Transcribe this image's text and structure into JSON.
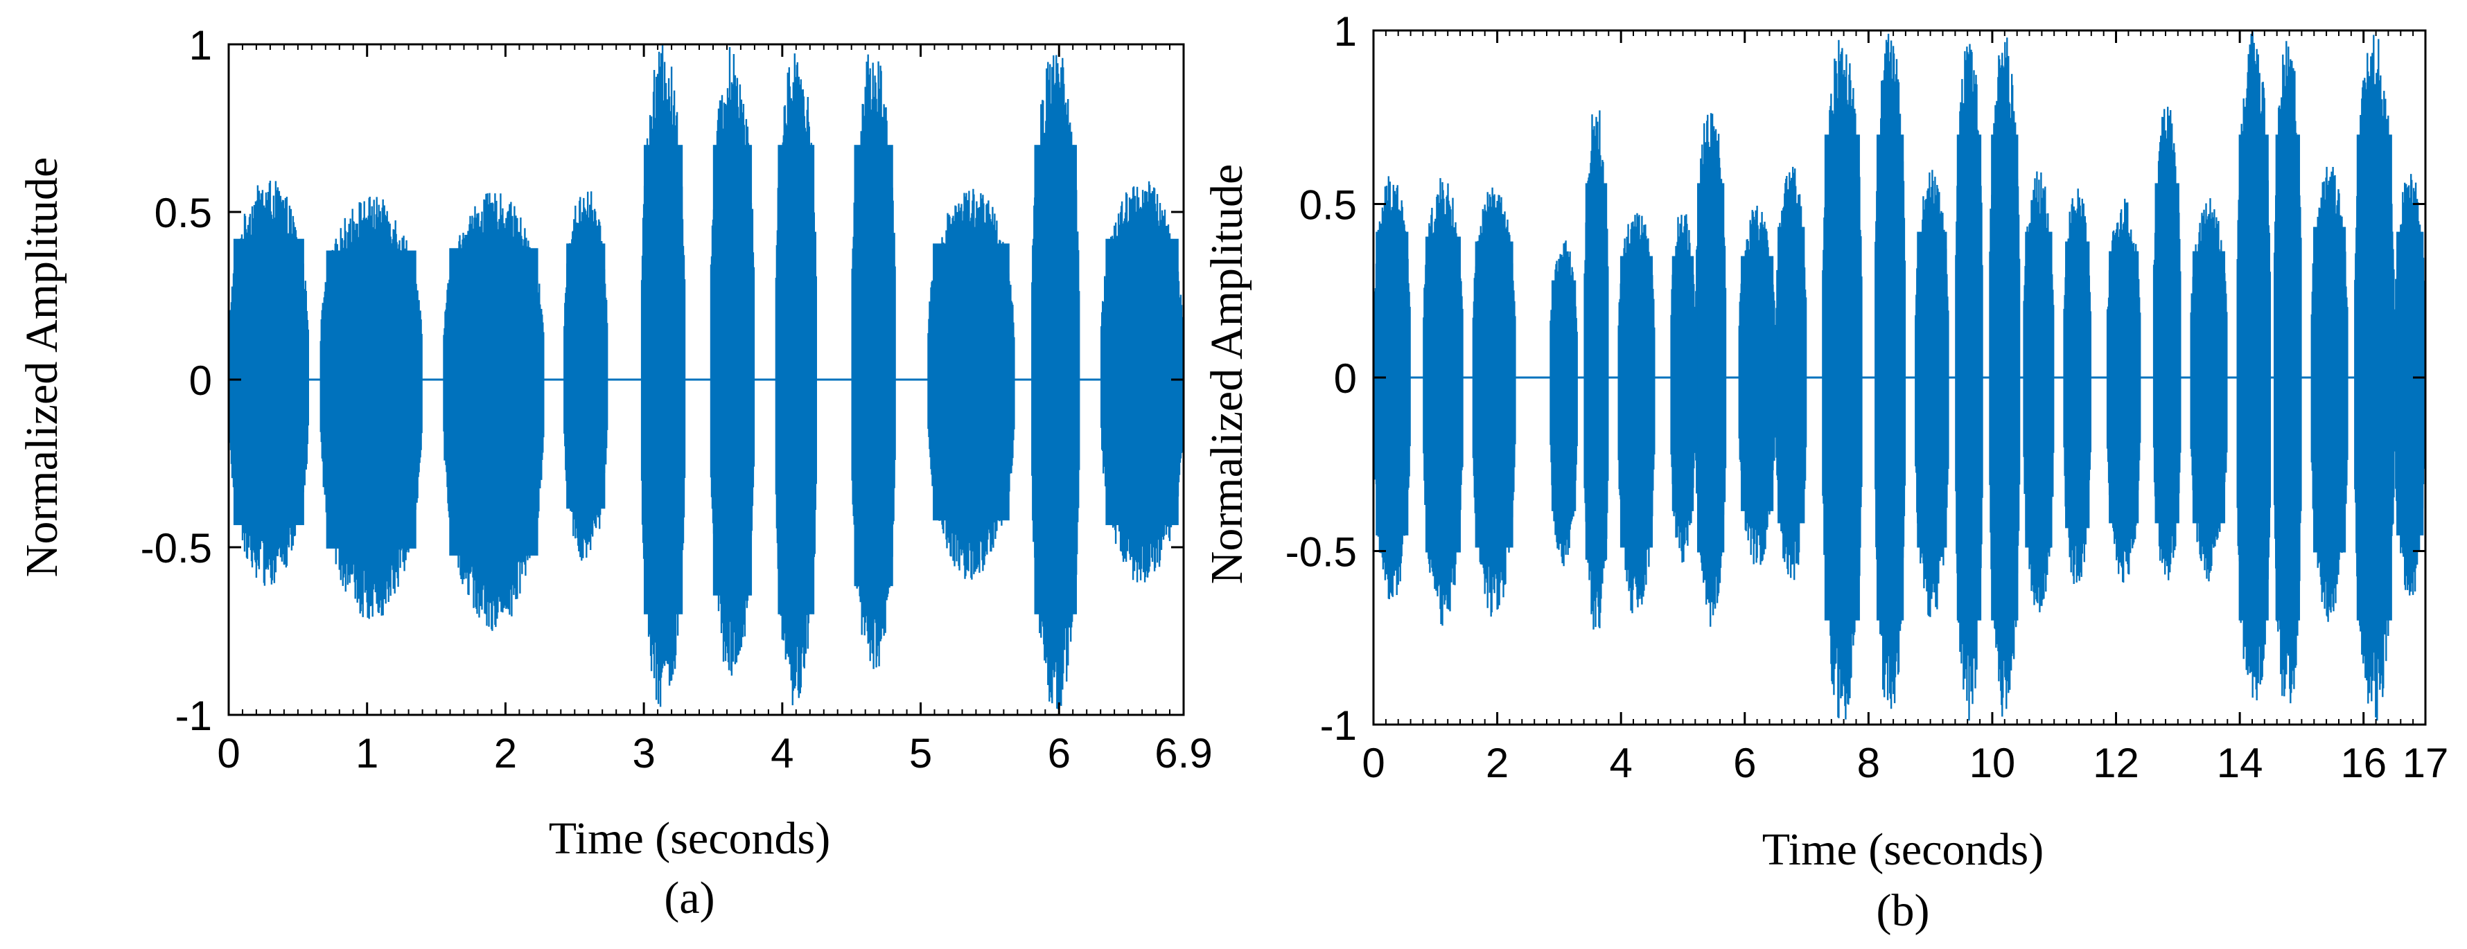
{
  "chart_data": [
    {
      "type": "line",
      "caption": "(a)",
      "xlabel": "Time (seconds)",
      "ylabel": "Normalized Amplitude",
      "xlim": [
        0,
        6.9
      ],
      "ylim": [
        -1,
        1
      ],
      "x_ticks": [
        0,
        1,
        2,
        3,
        4,
        5,
        6,
        6.9
      ],
      "x_tick_labels": [
        "0",
        "1",
        "2",
        "3",
        "4",
        "5",
        "6",
        "6.9"
      ],
      "y_ticks": [
        1,
        0.5,
        0,
        -0.5,
        -1
      ],
      "y_tick_labels": [
        "1",
        "0.5",
        "0",
        "-0.5",
        "-1"
      ],
      "grid": false,
      "series": [
        {
          "name": "waveform",
          "color": "#0072BD",
          "segments": [
            {
              "start": 0.0,
              "end": 0.58,
              "peak": 0.6,
              "neg_peak": -0.62
            },
            {
              "start": 0.66,
              "end": 1.4,
              "peak": 0.55,
              "neg_peak": -0.72
            },
            {
              "start": 1.55,
              "end": 2.28,
              "peak": 0.56,
              "neg_peak": -0.75
            },
            {
              "start": 2.42,
              "end": 2.74,
              "peak": 0.58,
              "neg_peak": -0.55
            },
            {
              "start": 2.98,
              "end": 3.3,
              "peak": 1.0,
              "neg_peak": -1.0
            },
            {
              "start": 3.48,
              "end": 3.8,
              "peak": 1.0,
              "neg_peak": -0.92
            },
            {
              "start": 3.95,
              "end": 4.25,
              "peak": 1.0,
              "neg_peak": -1.0
            },
            {
              "start": 4.5,
              "end": 4.82,
              "peak": 1.0,
              "neg_peak": -0.88
            },
            {
              "start": 5.05,
              "end": 5.68,
              "peak": 0.58,
              "neg_peak": -0.6
            },
            {
              "start": 5.8,
              "end": 6.15,
              "peak": 1.0,
              "neg_peak": -1.0
            },
            {
              "start": 6.3,
              "end": 6.9,
              "peak": 0.6,
              "neg_peak": -0.62
            }
          ]
        }
      ]
    },
    {
      "type": "line",
      "caption": "(b)",
      "xlabel": "Time (seconds)",
      "ylabel": "Normalized Amplitude",
      "xlim": [
        0,
        17
      ],
      "ylim": [
        -1,
        1
      ],
      "x_ticks": [
        0,
        2,
        4,
        6,
        8,
        10,
        12,
        14,
        16,
        17
      ],
      "x_tick_labels": [
        "0",
        "2",
        "4",
        "6",
        "8",
        "10",
        "12",
        "14",
        "16",
        "17"
      ],
      "y_ticks": [
        1,
        0.5,
        0,
        -0.5,
        -1
      ],
      "y_tick_labels": [
        "1",
        "0.5",
        "0",
        "-0.5",
        "-1"
      ],
      "grid": false,
      "series": [
        {
          "name": "waveform",
          "color": "#0072BD",
          "segments": [
            {
              "start": 0.0,
              "end": 0.6,
              "peak": 0.6,
              "neg_peak": -0.65
            },
            {
              "start": 0.8,
              "end": 1.45,
              "peak": 0.58,
              "neg_peak": -0.72
            },
            {
              "start": 1.6,
              "end": 2.3,
              "peak": 0.56,
              "neg_peak": -0.7
            },
            {
              "start": 2.85,
              "end": 3.3,
              "peak": 0.4,
              "neg_peak": -0.55
            },
            {
              "start": 3.4,
              "end": 3.8,
              "peak": 0.8,
              "neg_peak": -0.75
            },
            {
              "start": 3.95,
              "end": 4.55,
              "peak": 0.5,
              "neg_peak": -0.7
            },
            {
              "start": 4.8,
              "end": 5.2,
              "peak": 0.5,
              "neg_peak": -0.55
            },
            {
              "start": 5.2,
              "end": 5.7,
              "peak": 0.8,
              "neg_peak": -0.72
            },
            {
              "start": 5.9,
              "end": 6.5,
              "peak": 0.5,
              "neg_peak": -0.55
            },
            {
              "start": 6.5,
              "end": 7.0,
              "peak": 0.62,
              "neg_peak": -0.6
            },
            {
              "start": 7.25,
              "end": 7.9,
              "peak": 1.0,
              "neg_peak": -1.0
            },
            {
              "start": 8.1,
              "end": 8.6,
              "peak": 1.0,
              "neg_peak": -1.0
            },
            {
              "start": 8.75,
              "end": 9.3,
              "peak": 0.6,
              "neg_peak": -0.7
            },
            {
              "start": 9.4,
              "end": 9.85,
              "peak": 1.0,
              "neg_peak": -1.0
            },
            {
              "start": 9.95,
              "end": 10.45,
              "peak": 1.0,
              "neg_peak": -1.0
            },
            {
              "start": 10.5,
              "end": 11.0,
              "peak": 0.6,
              "neg_peak": -0.7
            },
            {
              "start": 11.15,
              "end": 11.6,
              "peak": 0.56,
              "neg_peak": -0.62
            },
            {
              "start": 11.85,
              "end": 12.4,
              "peak": 0.52,
              "neg_peak": -0.6
            },
            {
              "start": 12.6,
              "end": 13.05,
              "peak": 0.8,
              "neg_peak": -0.6
            },
            {
              "start": 13.2,
              "end": 13.8,
              "peak": 0.52,
              "neg_peak": -0.6
            },
            {
              "start": 13.95,
              "end": 14.5,
              "peak": 1.0,
              "neg_peak": -1.0
            },
            {
              "start": 14.55,
              "end": 15.0,
              "peak": 1.0,
              "neg_peak": -1.0
            },
            {
              "start": 15.15,
              "end": 15.75,
              "peak": 0.62,
              "neg_peak": -0.72
            },
            {
              "start": 15.85,
              "end": 16.5,
              "peak": 1.0,
              "neg_peak": -1.0
            },
            {
              "start": 16.5,
              "end": 17.0,
              "peak": 0.6,
              "neg_peak": -0.65
            }
          ]
        }
      ]
    }
  ]
}
